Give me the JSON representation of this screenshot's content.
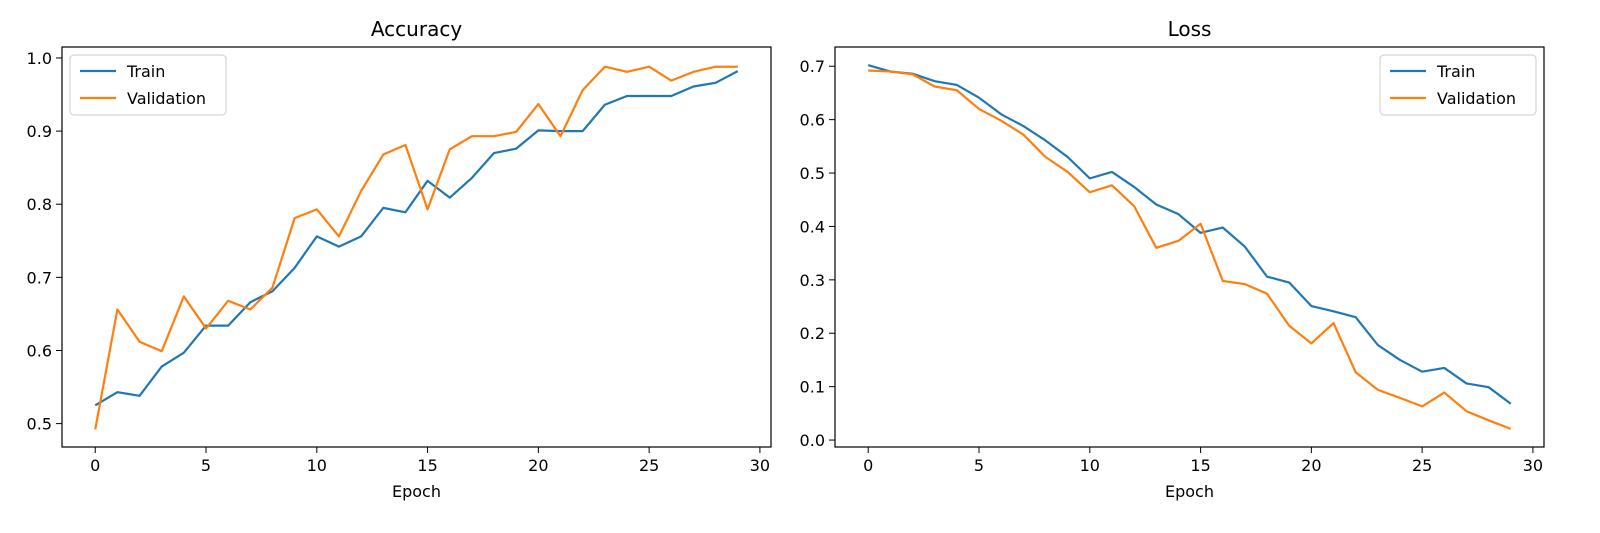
{
  "chart_data": [
    {
      "type": "line",
      "title": "Accuracy",
      "xlabel": "Epoch",
      "ylabel": "",
      "xlim": [
        -1.5,
        30.5
      ],
      "ylim": [
        0.468,
        1.015
      ],
      "xticks": [
        0,
        5,
        10,
        15,
        20,
        25,
        30
      ],
      "xtick_labels": [
        "0",
        "5",
        "10",
        "15",
        "20",
        "25",
        "30"
      ],
      "yticks": [
        0.5,
        0.6,
        0.7,
        0.8,
        0.9,
        1.0
      ],
      "ytick_labels": [
        "0.5",
        "0.6",
        "0.7",
        "0.8",
        "0.9",
        "1.0"
      ],
      "legend_position": "upper-left",
      "x": [
        0,
        1,
        2,
        3,
        4,
        5,
        6,
        7,
        8,
        9,
        10,
        11,
        12,
        13,
        14,
        15,
        16,
        17,
        18,
        19,
        20,
        21,
        22,
        23,
        24,
        25,
        26,
        27,
        28,
        29
      ],
      "series": [
        {
          "name": "Train",
          "color": "#1f77b4",
          "values": [
            0.525,
            0.543,
            0.538,
            0.578,
            0.597,
            0.634,
            0.634,
            0.666,
            0.681,
            0.713,
            0.756,
            0.742,
            0.756,
            0.795,
            0.789,
            0.832,
            0.809,
            0.836,
            0.87,
            0.876,
            0.901,
            0.9,
            0.9,
            0.936,
            0.948,
            0.948,
            0.948,
            0.961,
            0.966,
            0.982
          ]
        },
        {
          "name": "Validation",
          "color": "#ff7f0e",
          "values": [
            0.492,
            0.656,
            0.612,
            0.599,
            0.674,
            0.63,
            0.668,
            0.656,
            0.686,
            0.781,
            0.793,
            0.756,
            0.818,
            0.868,
            0.881,
            0.793,
            0.875,
            0.893,
            0.893,
            0.899,
            0.937,
            0.893,
            0.956,
            0.988,
            0.981,
            0.988,
            0.969,
            0.981,
            0.988,
            0.988
          ]
        }
      ]
    },
    {
      "type": "line",
      "title": "Loss",
      "xlabel": "Epoch",
      "ylabel": "",
      "xlim": [
        -1.5,
        30.5
      ],
      "ylim": [
        -0.013,
        0.736
      ],
      "xticks": [
        0,
        5,
        10,
        15,
        20,
        25,
        30
      ],
      "xtick_labels": [
        "0",
        "5",
        "10",
        "15",
        "20",
        "25",
        "30"
      ],
      "yticks": [
        0.0,
        0.1,
        0.2,
        0.3,
        0.4,
        0.5,
        0.6,
        0.7
      ],
      "ytick_labels": [
        "0.0",
        "0.1",
        "0.2",
        "0.3",
        "0.4",
        "0.5",
        "0.6",
        "0.7"
      ],
      "legend_position": "upper-right",
      "x": [
        0,
        1,
        2,
        3,
        4,
        5,
        6,
        7,
        8,
        9,
        10,
        11,
        12,
        13,
        14,
        15,
        16,
        17,
        18,
        19,
        20,
        21,
        22,
        23,
        24,
        25,
        26,
        27,
        28,
        29
      ],
      "series": [
        {
          "name": "Train",
          "color": "#1f77b4",
          "values": [
            0.702,
            0.69,
            0.686,
            0.672,
            0.665,
            0.641,
            0.61,
            0.588,
            0.561,
            0.53,
            0.49,
            0.502,
            0.474,
            0.441,
            0.423,
            0.388,
            0.398,
            0.362,
            0.306,
            0.295,
            0.251,
            0.241,
            0.23,
            0.178,
            0.15,
            0.128,
            0.135,
            0.106,
            0.099,
            0.068
          ]
        },
        {
          "name": "Validation",
          "color": "#ff7f0e",
          "values": [
            0.692,
            0.69,
            0.685,
            0.662,
            0.655,
            0.62,
            0.598,
            0.572,
            0.53,
            0.502,
            0.464,
            0.477,
            0.438,
            0.36,
            0.373,
            0.405,
            0.298,
            0.292,
            0.274,
            0.214,
            0.181,
            0.219,
            0.127,
            0.094,
            0.079,
            0.063,
            0.089,
            0.054,
            0.037,
            0.021
          ]
        }
      ]
    }
  ]
}
